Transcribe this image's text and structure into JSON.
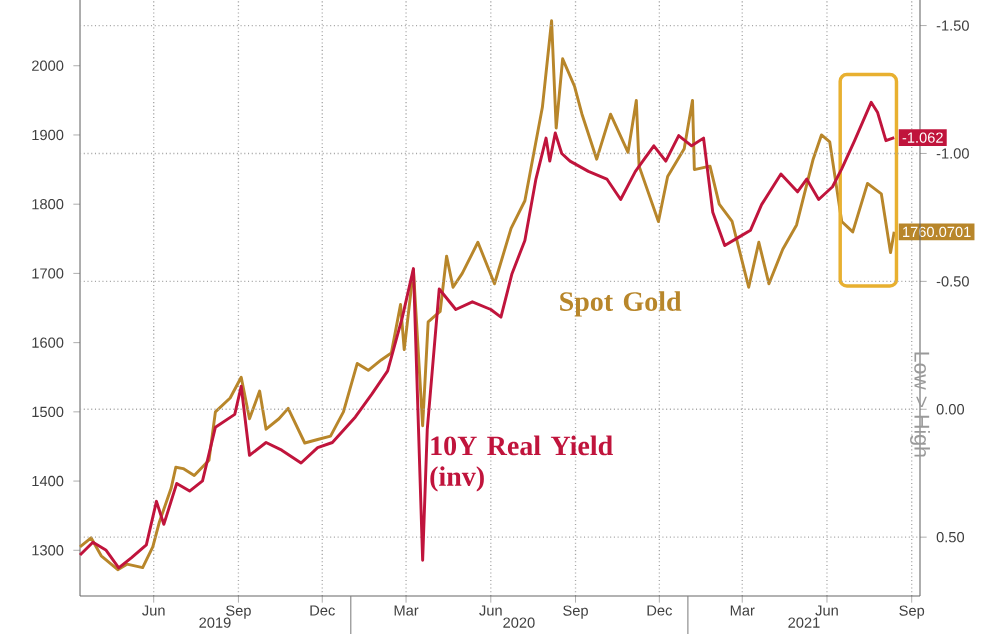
{
  "chart_data": {
    "type": "line",
    "y2label": "Low > High",
    "xlim": [
      "2019-03-13",
      "2021-09-10"
    ],
    "xticks": [
      {
        "value": "2019-06-01",
        "label": "Jun"
      },
      {
        "value": "2019-09-01",
        "label": "Sep"
      },
      {
        "value": "2019-12-01",
        "label": "Dec"
      },
      {
        "value": "2020-03-01",
        "label": "Mar"
      },
      {
        "value": "2020-06-01",
        "label": "Jun"
      },
      {
        "value": "2020-09-01",
        "label": "Sep"
      },
      {
        "value": "2020-12-01",
        "label": "Dec"
      },
      {
        "value": "2021-03-01",
        "label": "Mar"
      },
      {
        "value": "2021-06-01",
        "label": "Jun"
      },
      {
        "value": "2021-09-01",
        "label": "Sep"
      }
    ],
    "ylim": [
      1234,
      2095
    ],
    "yticks": [
      1300,
      1400,
      1500,
      1600,
      1700,
      1800,
      1900,
      2000
    ],
    "y2lim": [
      0.73,
      -1.6
    ],
    "y2ticks": [
      {
        "value": -1.5,
        "label": "-1.50"
      },
      {
        "value": -1.0,
        "label": "-1.00"
      },
      {
        "value": -0.5,
        "label": "-0.50"
      },
      {
        "value": 0.0,
        "label": "0.00"
      },
      {
        "value": 0.5,
        "label": "0.50"
      }
    ],
    "grid": true,
    "annotations": [
      "2019",
      "2020",
      "2021"
    ],
    "series": [
      {
        "name": "Spot Gold",
        "color": "#b8862a",
        "x": [
          "2019-03-13",
          "2019-03-25",
          "2019-04-05",
          "2019-04-23",
          "2019-05-03",
          "2019-05-20",
          "2019-05-31",
          "2019-06-07",
          "2019-06-20",
          "2019-06-25",
          "2019-07-03",
          "2019-07-15",
          "2019-07-31",
          "2019-08-07",
          "2019-08-23",
          "2019-09-04",
          "2019-09-13",
          "2019-09-24",
          "2019-10-01",
          "2019-10-15",
          "2019-10-25",
          "2019-11-12",
          "2019-11-26",
          "2019-12-10",
          "2019-12-24",
          "2020-01-08",
          "2020-01-20",
          "2020-02-03",
          "2020-02-14",
          "2020-02-24",
          "2020-02-28",
          "2020-03-09",
          "2020-03-19",
          "2020-03-25",
          "2020-04-07",
          "2020-04-14",
          "2020-04-21",
          "2020-05-01",
          "2020-05-18",
          "2020-06-05",
          "2020-06-23",
          "2020-07-08",
          "2020-07-27",
          "2020-08-06",
          "2020-08-11",
          "2020-08-18",
          "2020-08-31",
          "2020-09-08",
          "2020-09-24",
          "2020-10-09",
          "2020-10-28",
          "2020-11-06",
          "2020-11-09",
          "2020-11-30",
          "2020-12-10",
          "2020-12-28",
          "2021-01-06",
          "2021-01-08",
          "2021-01-25",
          "2021-02-04",
          "2021-02-18",
          "2021-03-08",
          "2021-03-19",
          "2021-03-30",
          "2021-04-14",
          "2021-04-29",
          "2021-05-17",
          "2021-05-26",
          "2021-06-04",
          "2021-06-17",
          "2021-06-29",
          "2021-07-15",
          "2021-07-30",
          "2021-08-09",
          "2021-08-13"
        ],
        "values": [
          1305,
          1318,
          1292,
          1272,
          1280,
          1275,
          1305,
          1340,
          1390,
          1420,
          1418,
          1408,
          1430,
          1500,
          1520,
          1550,
          1490,
          1530,
          1475,
          1490,
          1505,
          1455,
          1460,
          1465,
          1500,
          1570,
          1560,
          1575,
          1585,
          1655,
          1590,
          1705,
          1480,
          1630,
          1645,
          1725,
          1680,
          1700,
          1745,
          1685,
          1765,
          1805,
          1940,
          2065,
          1910,
          2010,
          1970,
          1930,
          1865,
          1930,
          1875,
          1950,
          1855,
          1775,
          1840,
          1880,
          1950,
          1850,
          1855,
          1800,
          1775,
          1680,
          1745,
          1685,
          1735,
          1770,
          1865,
          1900,
          1890,
          1775,
          1760,
          1830,
          1815,
          1730,
          1760.0701
        ],
        "value_labels": [
          null,
          null,
          null,
          null,
          null,
          null,
          null,
          null,
          null,
          null,
          null,
          null,
          null,
          null,
          null,
          null,
          null,
          null,
          null,
          null,
          null,
          null,
          null,
          null,
          null,
          null,
          null,
          null,
          null,
          null,
          null,
          null,
          null,
          null,
          null,
          null,
          null,
          null,
          null,
          null,
          null,
          null,
          null,
          null,
          null,
          null,
          null,
          null,
          null,
          null,
          null,
          null,
          null,
          null,
          null,
          null,
          null,
          null,
          null,
          null,
          null,
          null,
          null,
          null,
          null,
          null,
          null,
          null,
          null,
          null,
          null,
          null,
          null,
          null,
          "1760.0701"
        ]
      },
      {
        "name": "10Y Real Yield (inv)",
        "color": "#c0143c",
        "axis": "y2",
        "x": [
          "2019-03-13",
          "2019-03-27",
          "2019-04-10",
          "2019-04-24",
          "2019-05-08",
          "2019-05-24",
          "2019-06-04",
          "2019-06-12",
          "2019-06-26",
          "2019-07-10",
          "2019-07-24",
          "2019-08-07",
          "2019-08-28",
          "2019-09-04",
          "2019-09-13",
          "2019-10-01",
          "2019-10-18",
          "2019-11-08",
          "2019-11-26",
          "2019-12-12",
          "2020-01-06",
          "2020-01-24",
          "2020-02-10",
          "2020-02-26",
          "2020-03-09",
          "2020-03-19",
          "2020-03-24",
          "2020-04-06",
          "2020-04-24",
          "2020-05-12",
          "2020-06-01",
          "2020-06-12",
          "2020-06-24",
          "2020-07-08",
          "2020-07-20",
          "2020-07-31",
          "2020-08-04",
          "2020-08-10",
          "2020-08-17",
          "2020-08-26",
          "2020-09-15",
          "2020-10-05",
          "2020-10-20",
          "2020-11-05",
          "2020-11-25",
          "2020-12-08",
          "2020-12-22",
          "2021-01-05",
          "2021-01-18",
          "2021-01-28",
          "2021-02-10",
          "2021-02-24",
          "2021-03-10",
          "2021-03-22",
          "2021-04-12",
          "2021-04-30",
          "2021-05-10",
          "2021-05-23",
          "2021-06-07",
          "2021-06-17",
          "2021-07-01",
          "2021-07-19",
          "2021-07-26",
          "2021-08-04",
          "2021-08-13"
        ],
        "values": [
          0.57,
          0.52,
          0.55,
          0.62,
          0.58,
          0.53,
          0.36,
          0.45,
          0.29,
          0.32,
          0.28,
          0.07,
          0.02,
          -0.09,
          0.18,
          0.13,
          0.16,
          0.21,
          0.15,
          0.13,
          0.03,
          -0.06,
          -0.15,
          -0.36,
          -0.55,
          0.59,
          0.08,
          -0.47,
          -0.39,
          -0.42,
          -0.39,
          -0.36,
          -0.53,
          -0.66,
          -0.9,
          -1.06,
          -0.97,
          -1.08,
          -1.0,
          -0.97,
          -0.93,
          -0.9,
          -0.82,
          -0.93,
          -1.03,
          -0.97,
          -1.07,
          -1.03,
          -1.06,
          -0.77,
          -0.64,
          -0.67,
          -0.7,
          -0.8,
          -0.92,
          -0.85,
          -0.9,
          -0.82,
          -0.87,
          -0.94,
          -1.05,
          -1.2,
          -1.16,
          -1.05,
          -1.062
        ],
        "value_labels": [
          null,
          null,
          null,
          null,
          null,
          null,
          null,
          null,
          null,
          null,
          null,
          null,
          null,
          null,
          null,
          null,
          null,
          null,
          null,
          null,
          null,
          null,
          null,
          null,
          null,
          null,
          null,
          null,
          null,
          null,
          null,
          null,
          null,
          null,
          null,
          null,
          null,
          null,
          null,
          null,
          null,
          null,
          null,
          null,
          null,
          null,
          null,
          null,
          null,
          null,
          null,
          null,
          null,
          null,
          null,
          null,
          null,
          null,
          null,
          null,
          null,
          null,
          null,
          null,
          "-1.062"
        ]
      }
    ]
  }
}
